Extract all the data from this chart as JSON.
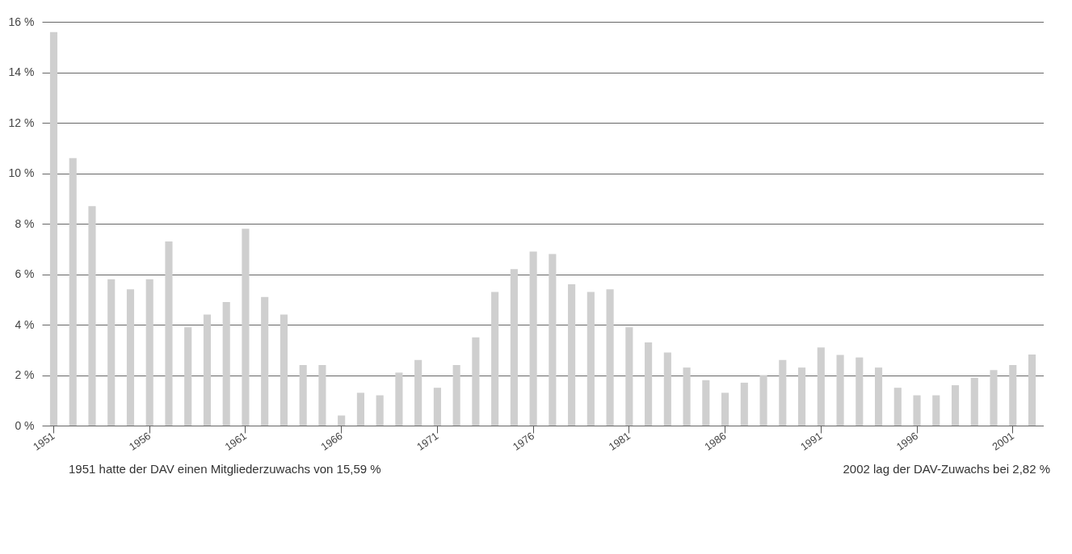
{
  "chart_data": {
    "type": "bar",
    "categories": [
      "1951",
      null,
      null,
      null,
      null,
      "1956",
      null,
      null,
      null,
      null,
      "1961",
      null,
      null,
      null,
      null,
      "1966",
      null,
      null,
      null,
      null,
      "1971",
      null,
      null,
      null,
      null,
      "1976",
      null,
      null,
      null,
      null,
      "1981",
      null,
      null,
      null,
      null,
      "1986",
      null,
      null,
      null,
      null,
      "1991",
      null,
      null,
      null,
      null,
      "1996",
      null,
      null,
      null,
      null,
      "2001",
      null
    ],
    "values": [
      15.59,
      10.6,
      8.7,
      5.8,
      5.4,
      5.8,
      7.3,
      3.9,
      4.4,
      4.9,
      7.8,
      5.1,
      4.4,
      2.4,
      2.4,
      0.4,
      1.3,
      1.2,
      2.1,
      2.6,
      1.5,
      2.4,
      3.5,
      5.3,
      6.2,
      6.9,
      6.8,
      5.6,
      5.3,
      5.4,
      3.9,
      3.3,
      2.9,
      2.3,
      1.8,
      1.3,
      1.7,
      2.0,
      2.6,
      2.3,
      3.1,
      2.8,
      2.7,
      2.3,
      1.5,
      1.2,
      1.2,
      1.6,
      1.9,
      2.2,
      2.4,
      2.82
    ],
    "color": "#cfcfcf",
    "ylim": [
      0,
      16
    ],
    "yticks": [
      {
        "value": 0,
        "label": "0 %"
      },
      {
        "value": 2,
        "label": "2 %"
      },
      {
        "value": 4,
        "label": "4 %"
      },
      {
        "value": 6,
        "label": "6 %"
      },
      {
        "value": 8,
        "label": "8 %"
      },
      {
        "value": 10,
        "label": "10 %"
      },
      {
        "value": 12,
        "label": "12 %"
      },
      {
        "value": 14,
        "label": "14 %"
      },
      {
        "value": 16,
        "label": "16 %"
      }
    ],
    "grid": "y",
    "annotations": [
      "1951 hatte der DAV einen Mitgliederzuwachs von 15,59 %",
      "2002 lag der DAV-Zuwachs bei 2,82 %"
    ]
  }
}
